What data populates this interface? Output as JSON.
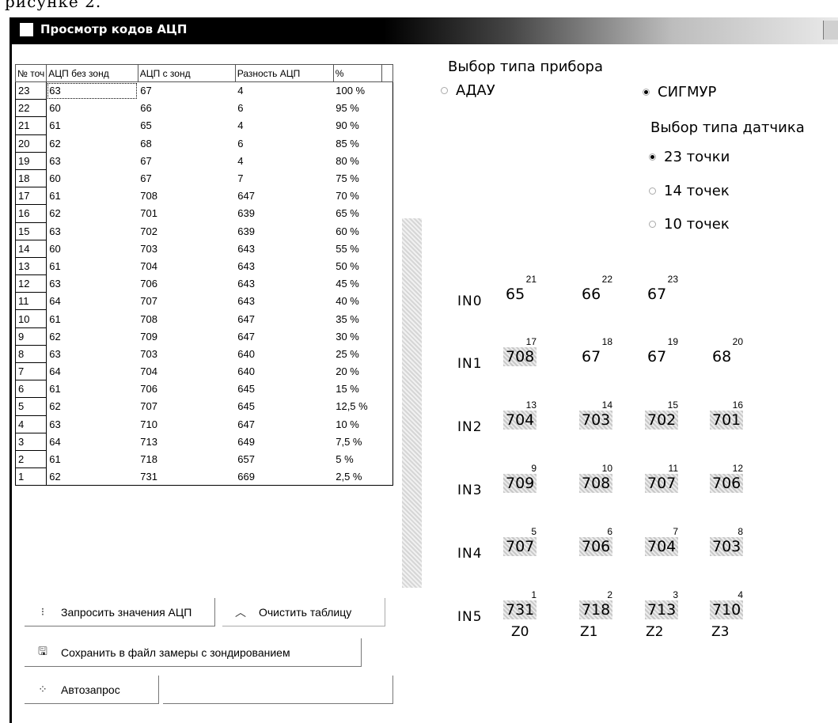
{
  "page_fragment": "рисунке 2.",
  "window": {
    "title": "Просмотр кодов АЦП"
  },
  "table": {
    "headers": [
      "№ точ",
      "АЦП без зонд",
      "АЦП с зонд",
      "Разность АЦП",
      "%"
    ],
    "rows": [
      [
        "23",
        "63",
        "67",
        "4",
        "100 %"
      ],
      [
        "22",
        "60",
        "66",
        "6",
        "95 %"
      ],
      [
        "21",
        "61",
        "65",
        "4",
        "90 %"
      ],
      [
        "20",
        "62",
        "68",
        "6",
        "85 %"
      ],
      [
        "19",
        "63",
        "67",
        "4",
        "80 %"
      ],
      [
        "18",
        "60",
        "67",
        "7",
        "75 %"
      ],
      [
        "17",
        "61",
        "708",
        "647",
        "70 %"
      ],
      [
        "16",
        "62",
        "701",
        "639",
        "65 %"
      ],
      [
        "15",
        "63",
        "702",
        "639",
        "60 %"
      ],
      [
        "14",
        "60",
        "703",
        "643",
        "55 %"
      ],
      [
        "13",
        "61",
        "704",
        "643",
        "50 %"
      ],
      [
        "12",
        "63",
        "706",
        "643",
        "45 %"
      ],
      [
        "11",
        "64",
        "707",
        "643",
        "40 %"
      ],
      [
        "10",
        "61",
        "708",
        "647",
        "35 %"
      ],
      [
        "9",
        "62",
        "709",
        "647",
        "30 %"
      ],
      [
        "8",
        "63",
        "703",
        "640",
        "25 %"
      ],
      [
        "7",
        "64",
        "704",
        "640",
        "20 %"
      ],
      [
        "6",
        "61",
        "706",
        "645",
        "15 %"
      ],
      [
        "5",
        "62",
        "707",
        "645",
        "12,5 %"
      ],
      [
        "4",
        "63",
        "710",
        "647",
        "10 %"
      ],
      [
        "3",
        "64",
        "713",
        "649",
        "7,5 %"
      ],
      [
        "2",
        "61",
        "718",
        "657",
        "5 %"
      ],
      [
        "1",
        "62",
        "731",
        "669",
        "2,5 %"
      ]
    ]
  },
  "buttons": {
    "query": "Запросить значения АЦП",
    "clear": "Очистить таблицу",
    "save": "Сохранить в файл замеры с зондированием",
    "auto": "Автозапрос"
  },
  "device": {
    "label": "Выбор типа прибора",
    "options": [
      "АДАУ",
      "СИГМУР"
    ],
    "selected": "СИГМУР"
  },
  "sensor": {
    "label": "Выбор типа датчика",
    "options": [
      "23 точки",
      "14 точек",
      "10 точек"
    ],
    "selected": "23 точки"
  },
  "matrix": {
    "rows": [
      {
        "label": "IN0",
        "cells": [
          {
            "n": "21",
            "v": "65",
            "hl": false
          },
          {
            "n": "22",
            "v": "66",
            "hl": false
          },
          {
            "n": "23",
            "v": "67",
            "hl": false
          }
        ]
      },
      {
        "label": "IN1",
        "cells": [
          {
            "n": "17",
            "v": "708",
            "hl": true
          },
          {
            "n": "18",
            "v": "67",
            "hl": false
          },
          {
            "n": "19",
            "v": "67",
            "hl": false
          },
          {
            "n": "20",
            "v": "68",
            "hl": false
          }
        ]
      },
      {
        "label": "IN2",
        "cells": [
          {
            "n": "13",
            "v": "704",
            "hl": true
          },
          {
            "n": "14",
            "v": "703",
            "hl": true
          },
          {
            "n": "15",
            "v": "702",
            "hl": true
          },
          {
            "n": "16",
            "v": "701",
            "hl": true
          }
        ]
      },
      {
        "label": "IN3",
        "cells": [
          {
            "n": "9",
            "v": "709",
            "hl": true
          },
          {
            "n": "10",
            "v": "708",
            "hl": true
          },
          {
            "n": "11",
            "v": "707",
            "hl": true
          },
          {
            "n": "12",
            "v": "706",
            "hl": true
          }
        ]
      },
      {
        "label": "IN4",
        "cells": [
          {
            "n": "5",
            "v": "707",
            "hl": true
          },
          {
            "n": "6",
            "v": "706",
            "hl": true
          },
          {
            "n": "7",
            "v": "704",
            "hl": true
          },
          {
            "n": "8",
            "v": "703",
            "hl": true
          }
        ]
      },
      {
        "label": "IN5",
        "cells": [
          {
            "n": "1",
            "v": "731",
            "hl": true
          },
          {
            "n": "2",
            "v": "718",
            "hl": true
          },
          {
            "n": "3",
            "v": "713",
            "hl": true
          },
          {
            "n": "4",
            "v": "710",
            "hl": true
          }
        ]
      }
    ],
    "zones": [
      "Z0",
      "Z1",
      "Z2",
      "Z3"
    ]
  }
}
